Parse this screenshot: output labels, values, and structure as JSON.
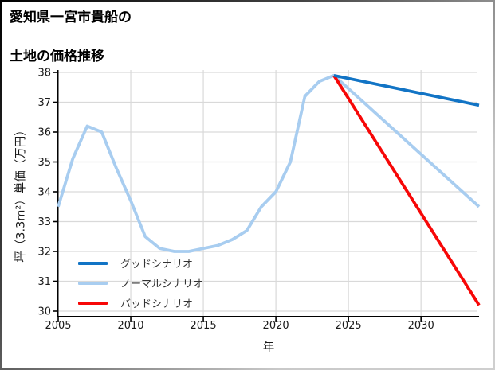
{
  "title": {
    "line1": "愛知県一宮市貴船の",
    "line2": "土地の価格推移"
  },
  "chart_data": {
    "type": "line",
    "title": "愛知県一宮市貴船の土地の価格推移",
    "xlabel": "年",
    "ylabel": "坪（3.3m²）単価（万円）",
    "xlim": [
      2005,
      2034
    ],
    "ylim": [
      29.9,
      38.1
    ],
    "x_ticks": [
      2005,
      2010,
      2015,
      2020,
      2025,
      2030
    ],
    "y_ticks": [
      30,
      31,
      32,
      33,
      34,
      35,
      36,
      37,
      38
    ],
    "grid": true,
    "grid_color": "#d9d9d9",
    "legend_position": "lower left inside",
    "series": [
      {
        "name": "グッドシナリオ",
        "color": "#1274c5",
        "points": [
          [
            2024,
            37.9
          ],
          [
            2034,
            36.9
          ]
        ]
      },
      {
        "name": "ノーマルシナリオ",
        "color": "#a8cdf0",
        "points": [
          [
            2005,
            33.5
          ],
          [
            2006,
            35.1
          ],
          [
            2007,
            36.2
          ],
          [
            2008,
            36.0
          ],
          [
            2009,
            34.8
          ],
          [
            2010,
            33.7
          ],
          [
            2011,
            32.5
          ],
          [
            2012,
            32.1
          ],
          [
            2013,
            32.0
          ],
          [
            2014,
            32.0
          ],
          [
            2015,
            32.1
          ],
          [
            2016,
            32.2
          ],
          [
            2017,
            32.4
          ],
          [
            2018,
            32.7
          ],
          [
            2019,
            33.5
          ],
          [
            2020,
            34.0
          ],
          [
            2021,
            35.0
          ],
          [
            2022,
            37.2
          ],
          [
            2023,
            37.7
          ],
          [
            2024,
            37.9
          ],
          [
            2034,
            33.5
          ]
        ]
      },
      {
        "name": "バッドシナリオ",
        "color": "#f70707",
        "points": [
          [
            2024,
            37.9
          ],
          [
            2034,
            30.2
          ]
        ]
      }
    ]
  }
}
